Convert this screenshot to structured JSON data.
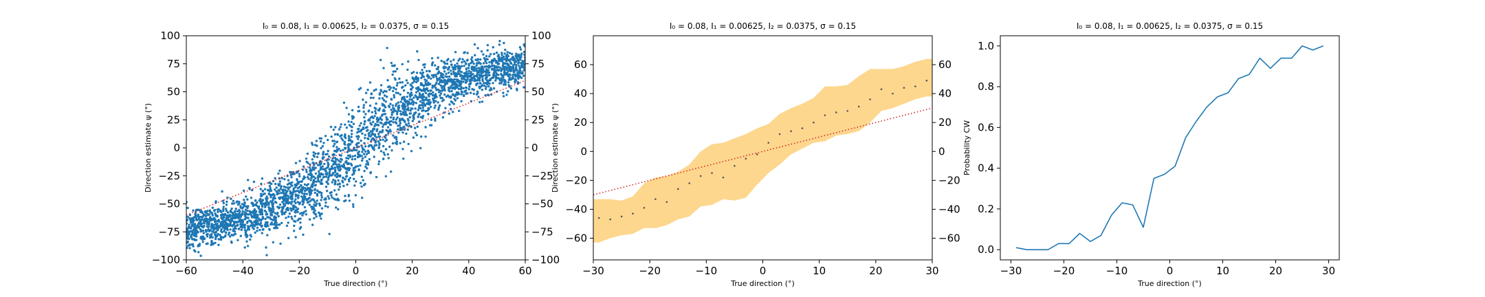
{
  "figure": {
    "panels": [
      {
        "title": "I₀ = 0.08, I₁ = 0.00625, I₂ = 0.0375, σ = 0.15",
        "xlabel": "True direction (°)",
        "ylabel": "Direction estimate ψ (°)"
      },
      {
        "title": "I₀ = 0.08, I₁ = 0.00625, I₂ = 0.0375, σ = 0.15",
        "xlabel": "True direction (°)",
        "ylabel": "Direction estimate ψ (°)"
      },
      {
        "title": "I₀ = 0.08, I₁ = 0.00625, I₂ = 0.0375, σ = 0.15",
        "xlabel": "True direction (°)",
        "ylabel": "Probability CW"
      }
    ]
  },
  "chart_data": [
    {
      "type": "scatter",
      "title": "I₀ = 0.08, I₁ = 0.00625, I₂ = 0.0375, σ = 0.15",
      "xlabel": "True direction (°)",
      "ylabel": "Direction estimate ψ (°)",
      "xlim": [
        -60,
        60
      ],
      "ylim": [
        -100,
        100
      ],
      "xticks": [
        -60,
        -40,
        -20,
        0,
        20,
        40,
        60
      ],
      "yticks": [
        -100,
        -75,
        -50,
        -25,
        0,
        25,
        50,
        75,
        100
      ],
      "right_axis_ticks": [
        -100,
        -75,
        -50,
        -25,
        0,
        25,
        50,
        75,
        100
      ],
      "point_color": "#1f77b4",
      "reference_line_color": "#d62728",
      "reference_line": {
        "style": "dotted",
        "x": [
          -60,
          60
        ],
        "y": [
          -60,
          60
        ]
      },
      "mean_curve": {
        "x": [
          -60,
          -50,
          -40,
          -30,
          -20,
          -10,
          0,
          10,
          20,
          30,
          40,
          50,
          60
        ],
        "y": [
          -73,
          -69,
          -63,
          -55,
          -43,
          -24,
          0,
          24,
          43,
          55,
          64,
          69,
          73
        ]
      },
      "spread_sd": [
        9,
        9,
        10,
        12,
        15,
        18,
        20,
        18,
        15,
        12,
        10,
        9,
        9
      ],
      "n_points": 3000
    },
    {
      "type": "line",
      "title": "I₀ = 0.08, I₁ = 0.00625, I₂ = 0.0375, σ = 0.15",
      "xlabel": "True direction (°)",
      "ylabel": "Direction estimate ψ (°)",
      "xlim": [
        -30,
        30
      ],
      "ylim": [
        -75,
        80
      ],
      "xticks": [
        -30,
        -20,
        -10,
        0,
        10,
        20,
        30
      ],
      "yticks": [
        -60,
        -40,
        -20,
        0,
        20,
        40,
        60
      ],
      "right_axis_ticks": [
        -60,
        -40,
        -20,
        0,
        20,
        40,
        60
      ],
      "band_color": "#fdd78e",
      "marker_color": "#555555",
      "reference_line_color": "#d62728",
      "reference_line": {
        "style": "dotted",
        "x": [
          -30,
          30
        ],
        "y": [
          -30,
          30
        ]
      },
      "x": [
        -29,
        -27,
        -25,
        -23,
        -21,
        -19,
        -17,
        -15,
        -13,
        -11,
        -9,
        -7,
        -5,
        -3,
        -1,
        1,
        3,
        5,
        7,
        9,
        11,
        13,
        15,
        17,
        19,
        21,
        23,
        25,
        27,
        29
      ],
      "mean": [
        -46,
        -47,
        -45,
        -43,
        -39,
        -33,
        -35,
        -26,
        -22,
        -17,
        -15,
        -18,
        -10,
        -5,
        -2,
        6,
        12,
        14,
        16,
        20,
        25,
        27,
        28,
        31,
        36,
        43,
        40,
        44,
        45,
        49
      ],
      "upper": [
        -33,
        -33,
        -34,
        -31,
        -22,
        -18,
        -17,
        -14,
        -9,
        0,
        5,
        6,
        9,
        12,
        16,
        19,
        26,
        30,
        33,
        37,
        45,
        45,
        46,
        52,
        57,
        57,
        57,
        59,
        62,
        64
      ],
      "lower": [
        -63,
        -60,
        -58,
        -57,
        -53,
        -53,
        -51,
        -47,
        -45,
        -38,
        -37,
        -33,
        -34,
        -32,
        -23,
        -15,
        -9,
        -2,
        2,
        6,
        7,
        11,
        12,
        14,
        20,
        28,
        30,
        33,
        36,
        38
      ]
    },
    {
      "type": "line",
      "title": "I₀ = 0.08, I₁ = 0.00625, I₂ = 0.0375, σ = 0.15",
      "xlabel": "True direction (°)",
      "ylabel": "Probability CW",
      "xlim": [
        -32,
        32
      ],
      "ylim": [
        -0.05,
        1.05
      ],
      "xticks": [
        -30,
        -20,
        -10,
        0,
        10,
        20,
        30
      ],
      "yticks": [
        0.0,
        0.2,
        0.4,
        0.6,
        0.8,
        1.0
      ],
      "line_color": "#1f77b4",
      "x": [
        -29,
        -27,
        -25,
        -23,
        -21,
        -19,
        -17,
        -15,
        -13,
        -11,
        -9,
        -7,
        -5,
        -3,
        -1,
        1,
        3,
        5,
        7,
        9,
        11,
        13,
        15,
        17,
        19,
        21,
        23,
        25,
        27,
        29
      ],
      "y": [
        0.01,
        0.0,
        0.0,
        0.0,
        0.03,
        0.03,
        0.08,
        0.04,
        0.07,
        0.17,
        0.23,
        0.22,
        0.11,
        0.35,
        0.37,
        0.41,
        0.55,
        0.63,
        0.7,
        0.75,
        0.77,
        0.84,
        0.86,
        0.94,
        0.89,
        0.94,
        0.94,
        1.0,
        0.98,
        1.0
      ]
    }
  ]
}
